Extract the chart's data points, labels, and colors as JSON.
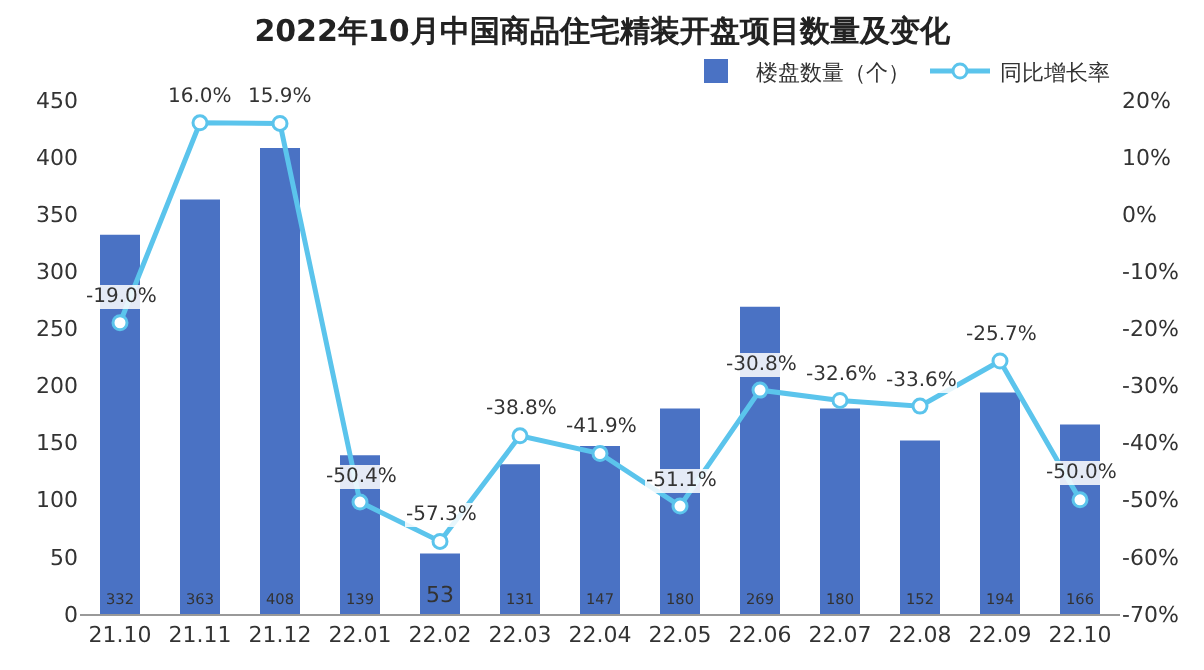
{
  "chart_data": {
    "type": "bar",
    "title": "2022年10月中国商品住宅精装开盘项目数量及变化",
    "categories": [
      "21.10",
      "21.11",
      "21.12",
      "22.01",
      "22.02",
      "22.03",
      "22.04",
      "22.05",
      "22.06",
      "22.07",
      "22.08",
      "22.09",
      "22.10"
    ],
    "series": [
      {
        "name": "楼盘数量（个）",
        "color": "#4a72c4",
        "values": [
          332,
          363,
          408,
          139,
          53,
          131,
          147,
          180,
          269,
          180,
          152,
          194,
          166
        ],
        "value_labels": [
          "332",
          "363",
          "408",
          "139",
          "53",
          "131",
          "147",
          "180",
          "269",
          "180",
          "152",
          "194",
          "166"
        ]
      },
      {
        "name": "同比增长率",
        "type": "line",
        "axis": "y2",
        "color": "#5bc4ec",
        "marker": "circle",
        "values": [
          -19.0,
          16.0,
          15.9,
          -50.4,
          -57.3,
          -38.8,
          -41.9,
          -51.1,
          -30.8,
          -32.6,
          -33.6,
          -25.7,
          -50.0
        ],
        "value_labels": [
          "-19.0%",
          "16.0%",
          "15.9%",
          "-50.4%",
          "-57.3%",
          "-38.8%",
          "-41.9%",
          "-51.1%",
          "-30.8%",
          "-32.6%",
          "-33.6%",
          "-25.7%",
          "-50.0%"
        ]
      }
    ],
    "ylim": [
      0,
      450
    ],
    "yticks": [
      0,
      50,
      100,
      150,
      200,
      250,
      300,
      350,
      400,
      450
    ],
    "y2lim": [
      -70,
      20
    ],
    "y2ticks": [
      {
        "value": -70,
        "label": "-70%"
      },
      {
        "value": -60,
        "label": "-60%"
      },
      {
        "value": -50,
        "label": "-50%"
      },
      {
        "value": -40,
        "label": "-40%"
      },
      {
        "value": -30,
        "label": "-30%"
      },
      {
        "value": -20,
        "label": "-20%"
      },
      {
        "value": -10,
        "label": "-10%"
      },
      {
        "value": 0,
        "label": "0%"
      },
      {
        "value": 10,
        "label": "10%"
      },
      {
        "value": 20,
        "label": "20%"
      }
    ],
    "grid": false,
    "legend": "top right"
  }
}
